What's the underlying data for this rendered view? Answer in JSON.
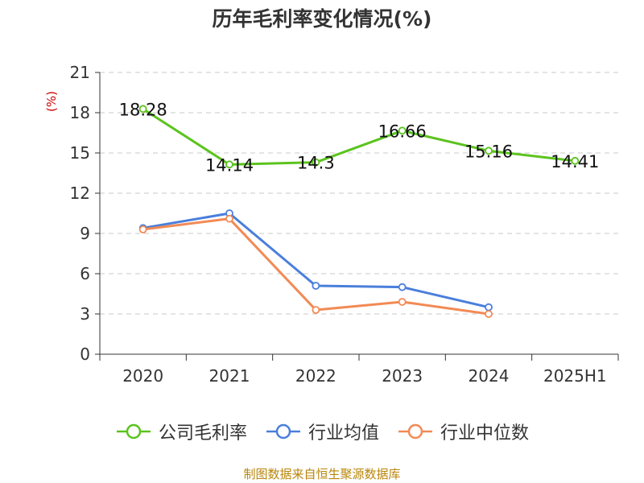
{
  "title": "历年毛利率变化情况(%)",
  "footer": "制图数据来自恒生聚源数据库",
  "chart_data": {
    "type": "line",
    "title": "历年毛利率变化情况(%)",
    "ylabel": "(%)",
    "xlabel": "",
    "categories": [
      "2020",
      "2021",
      "2022",
      "2023",
      "2024",
      "2025H1"
    ],
    "ylim": [
      0,
      21
    ],
    "yticks": [
      0,
      3,
      6,
      9,
      12,
      15,
      18,
      21
    ],
    "grid": true,
    "legend_position": "bottom",
    "series": [
      {
        "name": "公司毛利率",
        "color": "#5bc31e",
        "values": [
          18.28,
          14.14,
          14.3,
          16.66,
          15.16,
          14.41
        ],
        "labels": [
          "18.28",
          "14.14",
          "14.3",
          "16.66",
          "15.16",
          "14.41"
        ],
        "show_labels": true
      },
      {
        "name": "行业均值",
        "color": "#4a7fdb",
        "values": [
          9.4,
          10.5,
          5.1,
          5.0,
          3.5,
          null
        ],
        "show_labels": false
      },
      {
        "name": "行业中位数",
        "color": "#f28a55",
        "values": [
          9.3,
          10.1,
          3.3,
          3.9,
          3.0,
          null
        ],
        "show_labels": false
      }
    ]
  }
}
